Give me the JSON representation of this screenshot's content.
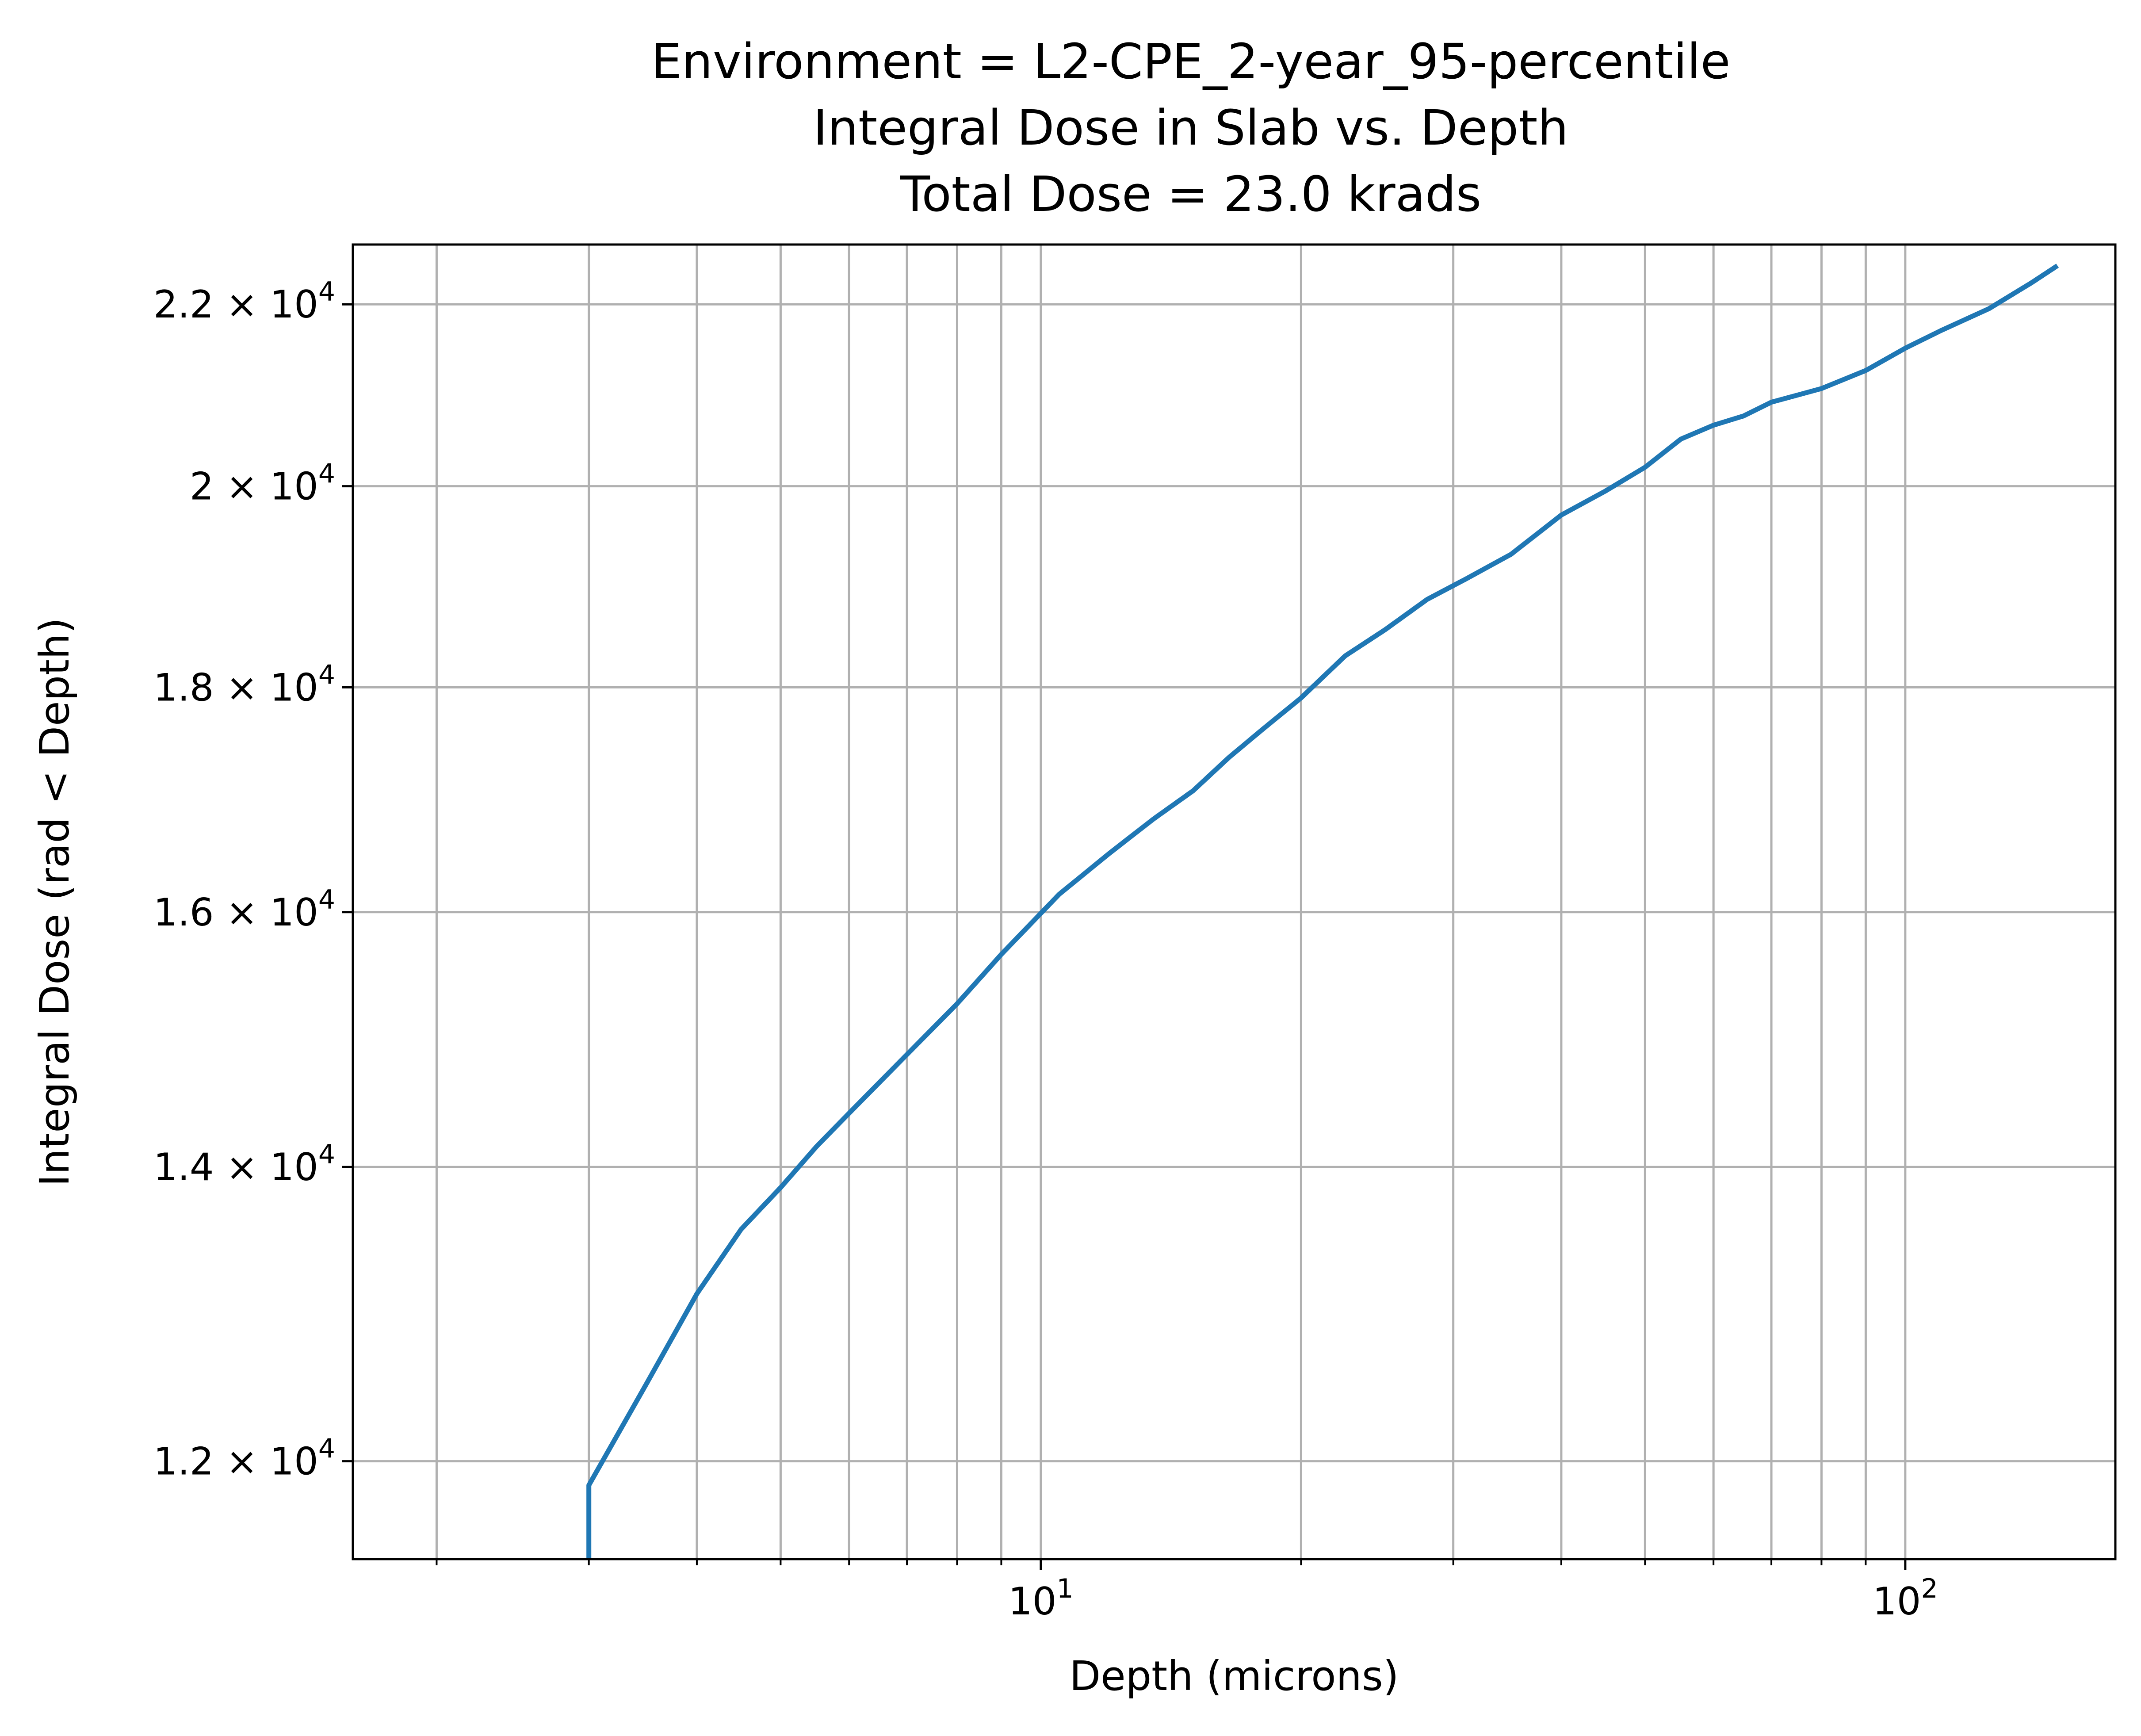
{
  "chart_data": {
    "type": "line",
    "title_lines": [
      "Environment = L2-CPE_2-year_95-percentile",
      "Integral Dose in Slab vs. Depth",
      "Total Dose = 23.0 krads"
    ],
    "xlabel": "Depth (microns)",
    "ylabel": "Integral Dose (rad < Depth)",
    "x_scale": "log",
    "y_scale": "log",
    "xlim": [
      1.6,
      175
    ],
    "ylim": [
      11400,
      22700
    ],
    "grid": true,
    "x_ticks": [
      {
        "base": "10",
        "exp": "1",
        "value": 10
      },
      {
        "base": "10",
        "exp": "2",
        "value": 100
      }
    ],
    "y_ticks": [
      {
        "mant": "1.2",
        "base": "× 10",
        "exp": "4",
        "value": 12000
      },
      {
        "mant": "1.4",
        "base": "× 10",
        "exp": "4",
        "value": 14000
      },
      {
        "mant": "1.6",
        "base": "× 10",
        "exp": "4",
        "value": 16000
      },
      {
        "mant": "1.8",
        "base": "× 10",
        "exp": "4",
        "value": 18000
      },
      {
        "mant": "2",
        "base": "× 10",
        "exp": "4",
        "value": 20000
      },
      {
        "mant": "2.2",
        "base": "× 10",
        "exp": "4",
        "value": 22000
      }
    ],
    "line_color": "#1f77b4",
    "series": [
      {
        "x": [
          3.0,
          3.0,
          3.5,
          4.0,
          4.5,
          5.0,
          5.5,
          6.0,
          7.0,
          8.0,
          9.0,
          10.5,
          12.0,
          13.5,
          15.0,
          16.5,
          18.0,
          20.0,
          22.5,
          25.0,
          28.0,
          31.0,
          35.0,
          40.0,
          45.0,
          50.0,
          55.0,
          60.0,
          65.0,
          70.0,
          80.0,
          90.0,
          100.0,
          110.0,
          125.0,
          140.0,
          150.0
        ],
        "y": [
          11300,
          11850,
          12500,
          13100,
          13550,
          13850,
          14150,
          14400,
          14850,
          15250,
          15650,
          16150,
          16500,
          16800,
          17050,
          17350,
          17600,
          17900,
          18300,
          18550,
          18850,
          19050,
          19300,
          19700,
          19950,
          20200,
          20500,
          20650,
          20750,
          20900,
          21050,
          21250,
          21500,
          21700,
          21950,
          22250,
          22450
        ]
      }
    ]
  }
}
